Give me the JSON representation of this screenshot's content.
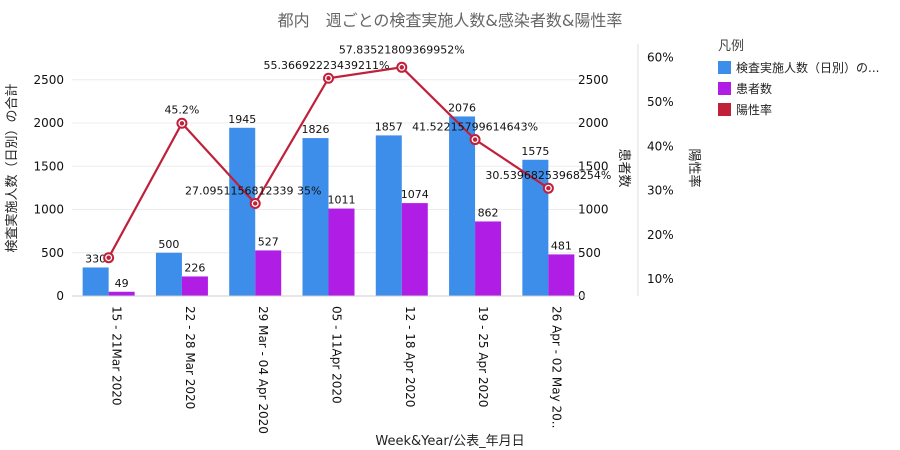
{
  "chart_data": {
    "type": "bar",
    "title": "都内　週ごとの検査実施人数&感染者数&陽性率",
    "xlabel": "Week&Year/公表_年月日",
    "ylabel_left": "検査実施人数（日別）の合計",
    "ylabel_right_inner": "患者数",
    "ylabel_right_outer": "陽性率",
    "categories": [
      "15 - 21Mar 2020",
      "22 - 28 Mar 2020",
      "29 Mar - 04 Apr 2020",
      "05 - 11Apr 2020",
      "12 - 18 Apr 2020",
      "19 - 25 Apr 2020",
      "26 Apr - 02 May 20.."
    ],
    "series": [
      {
        "name": "検査実施人数（日別）の...",
        "type": "bar",
        "axis": "left",
        "color": "#3d8eeb",
        "values": [
          330,
          500,
          1945,
          1826,
          1857,
          2076,
          1575
        ],
        "labels": [
          "330",
          "500",
          "1945",
          "1826",
          "1857",
          "2076",
          "1575"
        ]
      },
      {
        "name": "患者数",
        "type": "bar",
        "axis": "right_inner",
        "color": "#b01ee6",
        "values": [
          49,
          226,
          527,
          1011,
          1074,
          862,
          481
        ],
        "labels": [
          "49",
          "226",
          "527",
          "1011",
          "1074",
          "862",
          "481"
        ]
      },
      {
        "name": "陽性率",
        "type": "line",
        "axis": "right_outer",
        "color": "#c0203a",
        "values": [
          14.85,
          45.2,
          27.0951156812339,
          55.3669222343921,
          57.8352180936995,
          41.5221579961464,
          30.5396825396825
        ],
        "labels": [
          "",
          "45.2%",
          "27.0951156812339 35%",
          "55.36692223439211%",
          "57.83521809369952%",
          "41.52215799614643%",
          "30.53968253968254%"
        ]
      }
    ],
    "left_axis": {
      "ylim": [
        0,
        2960
      ],
      "ticks": [
        "0",
        "500",
        "1000",
        "1500",
        "2000",
        "2500"
      ]
    },
    "right_inner_axis": {
      "ylim": [
        0,
        2960
      ],
      "ticks": [
        "0",
        "500",
        "1000",
        "1500",
        "2000",
        "2500"
      ]
    },
    "right_outer_axis": {
      "ylim": [
        6.2,
        64.0
      ],
      "ticks": [
        "10%",
        "20%",
        "30%",
        "40%",
        "50%",
        "60%"
      ]
    },
    "legend": {
      "title": "凡例",
      "position": "right",
      "entries": [
        "検査実施人数（日別）の...",
        "患者数",
        "陽性率"
      ]
    },
    "grid": true
  }
}
